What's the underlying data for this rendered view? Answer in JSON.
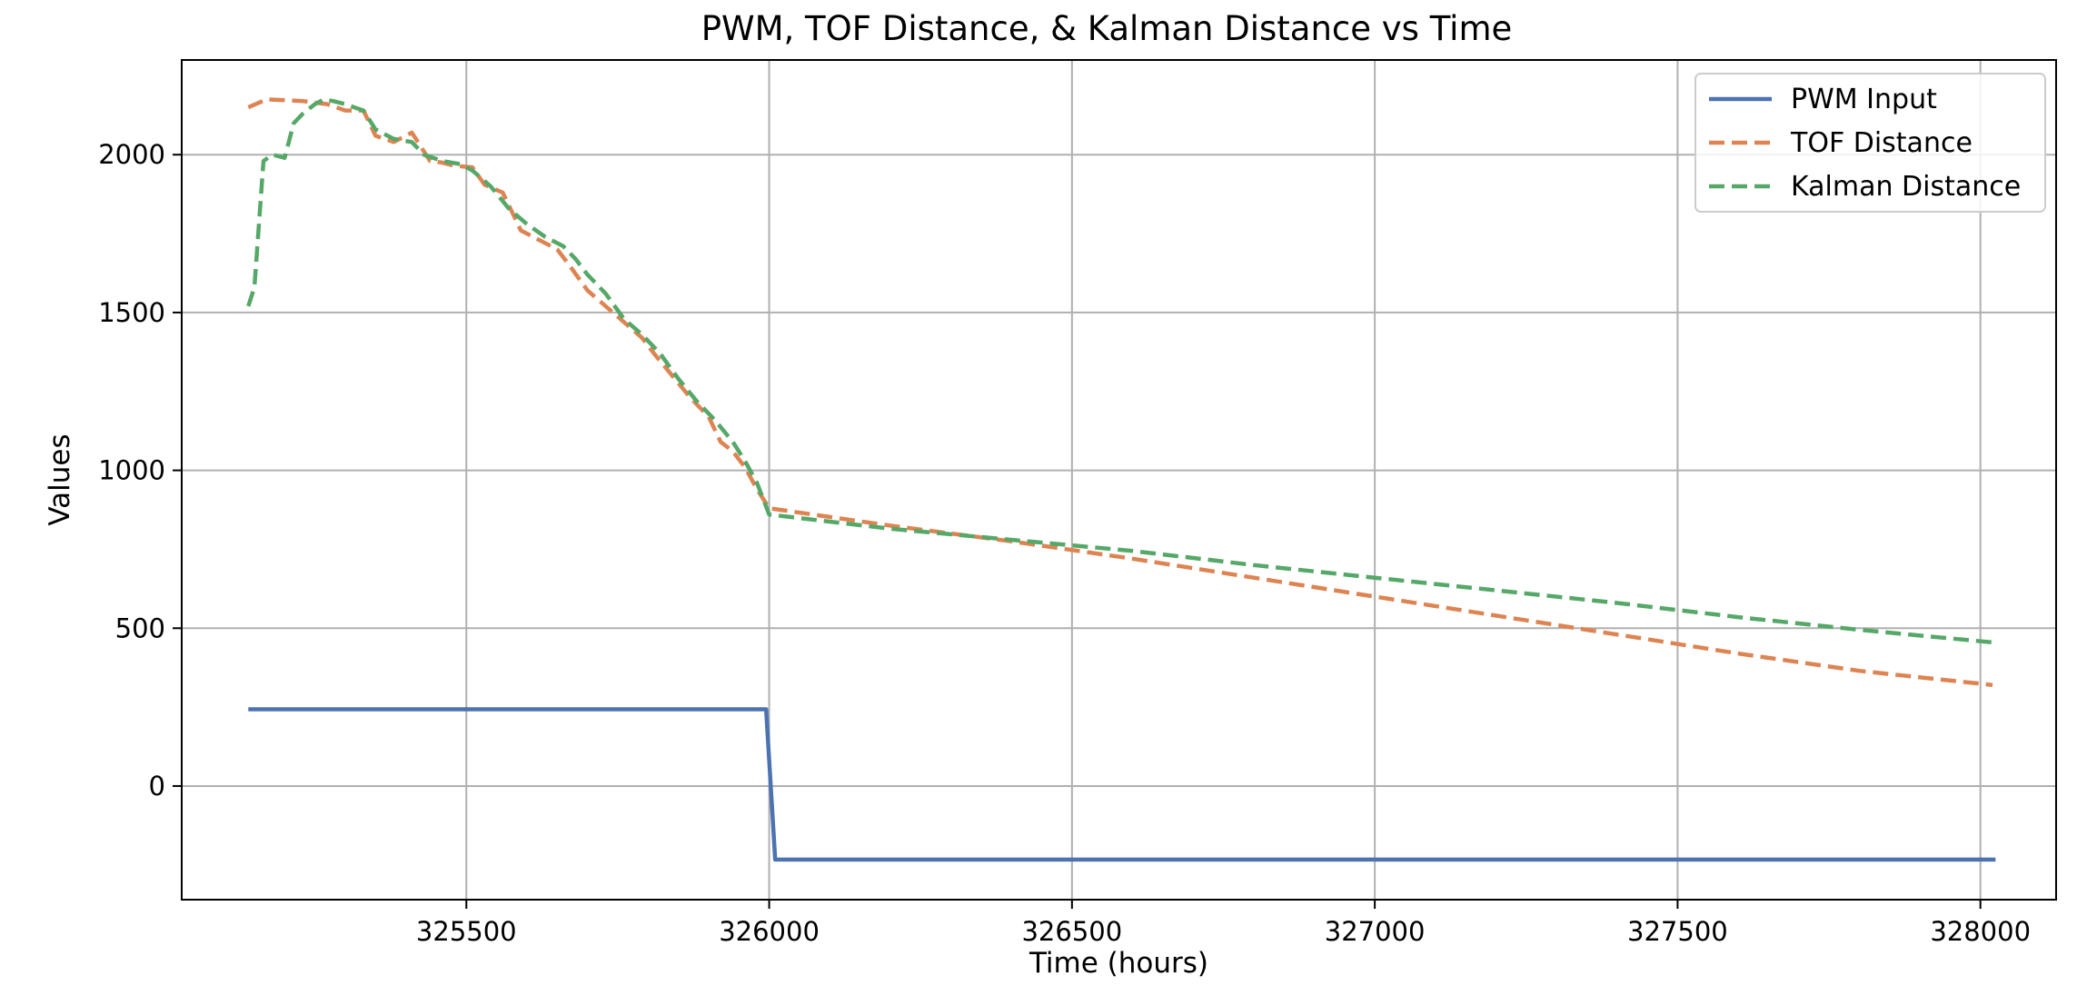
{
  "chart_data": {
    "type": "line",
    "title": "PWM, TOF Distance, & Kalman Distance vs Time",
    "xlabel": "Time (hours)",
    "ylabel": "Values",
    "xlim": [
      325030,
      328125
    ],
    "ylim": [
      -360,
      2300
    ],
    "x_ticks": [
      325500,
      326000,
      326500,
      327000,
      327500,
      328000
    ],
    "y_ticks": [
      0,
      500,
      1000,
      1500,
      2000
    ],
    "grid": true,
    "legend_position": "top-right",
    "series": [
      {
        "name": "PWM Input",
        "color": "#4c72b0",
        "style": "solid",
        "x": [
          325140,
          325995,
          326010,
          328025
        ],
        "y": [
          243,
          243,
          -233,
          -233
        ]
      },
      {
        "name": "TOF Distance",
        "color": "#dd8452",
        "style": "dashed",
        "x": [
          325140,
          325170,
          325230,
          325270,
          325300,
          325330,
          325350,
          325380,
          325410,
          325440,
          325460,
          325480,
          325510,
          325530,
          325560,
          325590,
          325620,
          325650,
          325670,
          325700,
          325730,
          325760,
          325790,
          325810,
          325840,
          325870,
          325900,
          325920,
          325940,
          325960,
          325980,
          326000,
          326200,
          326400,
          326600,
          326800,
          327000,
          327200,
          327400,
          327600,
          327800,
          328020
        ],
        "y": [
          2150,
          2175,
          2170,
          2160,
          2140,
          2140,
          2060,
          2040,
          2070,
          1980,
          1975,
          1965,
          1960,
          1905,
          1880,
          1760,
          1730,
          1700,
          1650,
          1570,
          1520,
          1470,
          1420,
          1370,
          1300,
          1230,
          1170,
          1090,
          1060,
          1010,
          940,
          880,
          825,
          775,
          720,
          660,
          600,
          540,
          480,
          420,
          365,
          320
        ]
      },
      {
        "name": "Kalman Distance",
        "color": "#55a868",
        "style": "dashed",
        "x": [
          325140,
          325150,
          325165,
          325180,
          325200,
          325215,
          325230,
          325250,
          325265,
          325280,
          325300,
          325330,
          325350,
          325380,
          325410,
          325430,
          325460,
          325490,
          325510,
          325540,
          325570,
          325600,
          325630,
          325660,
          325680,
          325700,
          325730,
          325760,
          325790,
          325820,
          325850,
          325880,
          325910,
          325940,
          325960,
          325980,
          326000,
          326200,
          326400,
          326600,
          326800,
          327000,
          327200,
          327400,
          327600,
          327800,
          328020
        ],
        "y": [
          1520,
          1580,
          1980,
          2000,
          1990,
          2100,
          2130,
          2160,
          2175,
          2170,
          2160,
          2140,
          2080,
          2050,
          2040,
          2000,
          1980,
          1970,
          1950,
          1900,
          1830,
          1780,
          1740,
          1710,
          1670,
          1620,
          1560,
          1480,
          1430,
          1370,
          1290,
          1220,
          1160,
          1090,
          1030,
          960,
          860,
          815,
          780,
          745,
          700,
          660,
          620,
          580,
          535,
          495,
          455
        ]
      }
    ]
  }
}
